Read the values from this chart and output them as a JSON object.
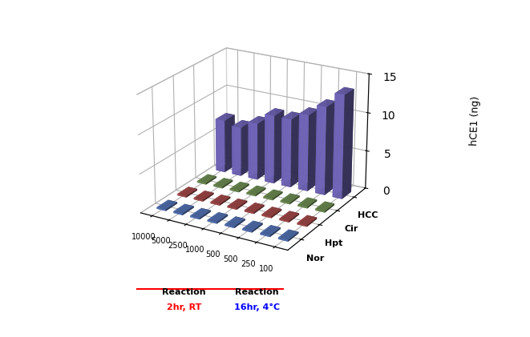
{
  "ylabel": "hCE1 (ng)",
  "x_labels": [
    "10000",
    "5000",
    "2500",
    "1000",
    "500",
    "500",
    "250",
    "100"
  ],
  "series_labels": [
    "HCC",
    "Cir",
    "Hpt",
    "Nor"
  ],
  "series_colors": [
    "#7B6FCC",
    "#7BA05B",
    "#B85050",
    "#5B7FCC"
  ],
  "bar_data": {
    "HCC": [
      7.0,
      6.5,
      7.5,
      9.0,
      9.0,
      10.0,
      11.5,
      13.5
    ],
    "Cir": [
      0.2,
      0.2,
      0.2,
      0.2,
      0.2,
      0.2,
      0.2,
      0.2
    ],
    "Hpt": [
      0.2,
      0.2,
      0.2,
      0.2,
      0.2,
      0.2,
      0.2,
      0.2
    ],
    "Nor": [
      0.2,
      0.2,
      0.2,
      0.2,
      0.2,
      0.2,
      0.2,
      0.2
    ]
  },
  "ylim": [
    0,
    15
  ],
  "yticks": [
    0,
    5,
    10,
    15
  ],
  "reaction1_color": "red",
  "reaction2_color": "blue",
  "background_color": "#ffffff",
  "elev": 22,
  "azim": -60,
  "bar_width": 0.55,
  "bar_depth": 0.55
}
